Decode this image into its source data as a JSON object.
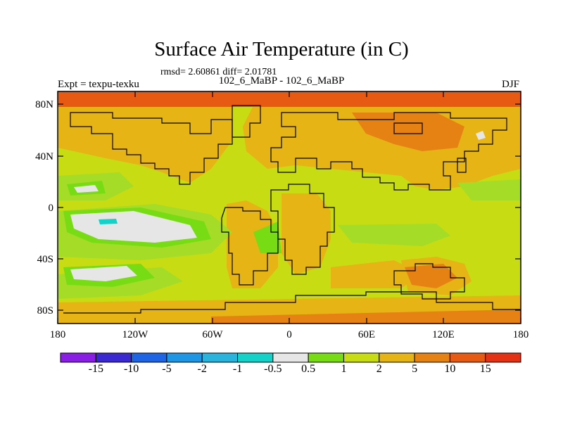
{
  "title": "Surface Air Temperature (in C)",
  "stats_line": "rmsd= 2.60861 diff= 2.01781",
  "experiment_pair": "102_6_MaBP - 102_6_MaBP",
  "left_label": "Expt = texpu-texku",
  "right_label": "DJF",
  "axes": {
    "y_ticks": [
      "80N",
      "40N",
      "0",
      "40S",
      "80S"
    ],
    "x_ticks": [
      "180",
      "120W",
      "60W",
      "0",
      "60E",
      "120E",
      "180"
    ]
  },
  "colorbar": {
    "labels": [
      "-15",
      "-10",
      "-5",
      "-2",
      "-1",
      "-0.5",
      "0.5",
      "1",
      "2",
      "5",
      "10",
      "15"
    ],
    "colors": [
      "#8a1ee6",
      "#3a28d2",
      "#1e64e6",
      "#1e96e6",
      "#28b4dc",
      "#14d2c8",
      "#e6e6e6",
      "#78dc14",
      "#c8dc14",
      "#e6b414",
      "#e68214",
      "#e65a14",
      "#e63214"
    ]
  },
  "map_colors": {
    "base": "#c8dc14",
    "warm": "#e6b414",
    "hot": "#e68214",
    "hottest": "#e65a14",
    "mild": "#a4dc28",
    "green": "#78dc14",
    "neutral": "#e6e6e6",
    "cyan": "#14d2c8"
  }
}
